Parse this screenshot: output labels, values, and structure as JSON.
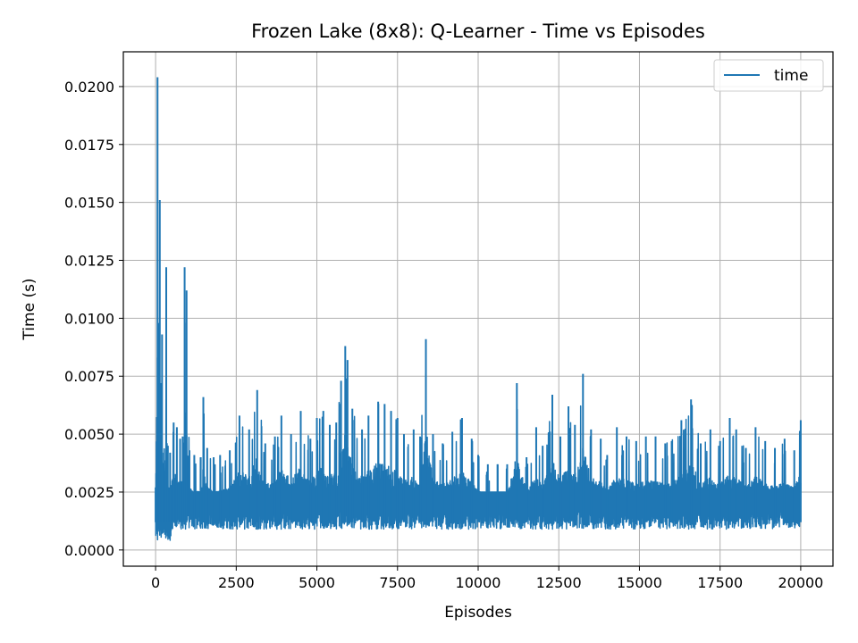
{
  "chart_data": {
    "type": "line",
    "title": "Frozen Lake (8x8): Q-Learner - Time vs Episodes",
    "xlabel": "Episodes",
    "ylabel": "Time (s)",
    "xlim": [
      -1000,
      21000
    ],
    "ylim": [
      -0.0007,
      0.0215
    ],
    "xticks": [
      0,
      2500,
      5000,
      7500,
      10000,
      12500,
      15000,
      17500,
      20000
    ],
    "xtick_labels": [
      "0",
      "2500",
      "5000",
      "7500",
      "10000",
      "12500",
      "15000",
      "17500",
      "20000"
    ],
    "yticks": [
      0.0,
      0.0025,
      0.005,
      0.0075,
      0.01,
      0.0125,
      0.015,
      0.0175,
      0.02
    ],
    "ytick_labels": [
      "0.0000",
      "0.0025",
      "0.0050",
      "0.0075",
      "0.0100",
      "0.0125",
      "0.0150",
      "0.0175",
      "0.0200"
    ],
    "grid": true,
    "legend": {
      "placement": "top-right"
    },
    "series": [
      {
        "name": "time",
        "color": "#1f77b4",
        "x": [
          0,
          60,
          100,
          130,
          170,
          200,
          260,
          330,
          380,
          450,
          560,
          660,
          760,
          840,
          900,
          960,
          1050,
          1200,
          1400,
          1480,
          1600,
          1800,
          2000,
          2300,
          2600,
          2900,
          3150,
          3400,
          3700,
          3900,
          4200,
          4500,
          4800,
          5000,
          5200,
          5400,
          5600,
          5750,
          5880,
          5950,
          6100,
          6400,
          6600,
          6900,
          7100,
          7300,
          7500,
          7700,
          8000,
          8200,
          8380,
          8600,
          8900,
          9200,
          9500,
          9800,
          10000,
          10300,
          10600,
          10900,
          11200,
          11500,
          11800,
          12000,
          12300,
          12550,
          12800,
          13000,
          13250,
          13500,
          13800,
          14000,
          14300,
          14600,
          14900,
          15200,
          15500,
          15800,
          16000,
          16300,
          16600,
          16900,
          17200,
          17500,
          17800,
          18000,
          18300,
          18600,
          18900,
          19200,
          19500,
          19800,
          20000
        ],
        "values": [
          0.0027,
          0.0204,
          0.0098,
          0.0151,
          0.0072,
          0.0093,
          0.0042,
          0.0122,
          0.0045,
          0.0042,
          0.0055,
          0.0053,
          0.0048,
          0.0049,
          0.0122,
          0.0112,
          0.0043,
          0.0041,
          0.004,
          0.0066,
          0.0044,
          0.004,
          0.0041,
          0.0043,
          0.0058,
          0.0052,
          0.0069,
          0.0046,
          0.0049,
          0.0058,
          0.005,
          0.006,
          0.0048,
          0.0057,
          0.006,
          0.0054,
          0.0055,
          0.0073,
          0.0088,
          0.0082,
          0.0061,
          0.0052,
          0.0058,
          0.0064,
          0.0063,
          0.006,
          0.0057,
          0.005,
          0.0052,
          0.0049,
          0.0091,
          0.005,
          0.0046,
          0.0051,
          0.0057,
          0.0048,
          0.0041,
          0.0037,
          0.0037,
          0.0037,
          0.0072,
          0.004,
          0.0053,
          0.0045,
          0.0067,
          0.0049,
          0.0062,
          0.0054,
          0.0076,
          0.0052,
          0.0048,
          0.0041,
          0.0053,
          0.0049,
          0.0047,
          0.0049,
          0.0049,
          0.0046,
          0.0047,
          0.0056,
          0.0065,
          0.0046,
          0.0052,
          0.0047,
          0.0057,
          0.0052,
          0.0044,
          0.0053,
          0.0047,
          0.0044,
          0.0048,
          0.0043,
          0.0056
        ]
      }
    ]
  }
}
